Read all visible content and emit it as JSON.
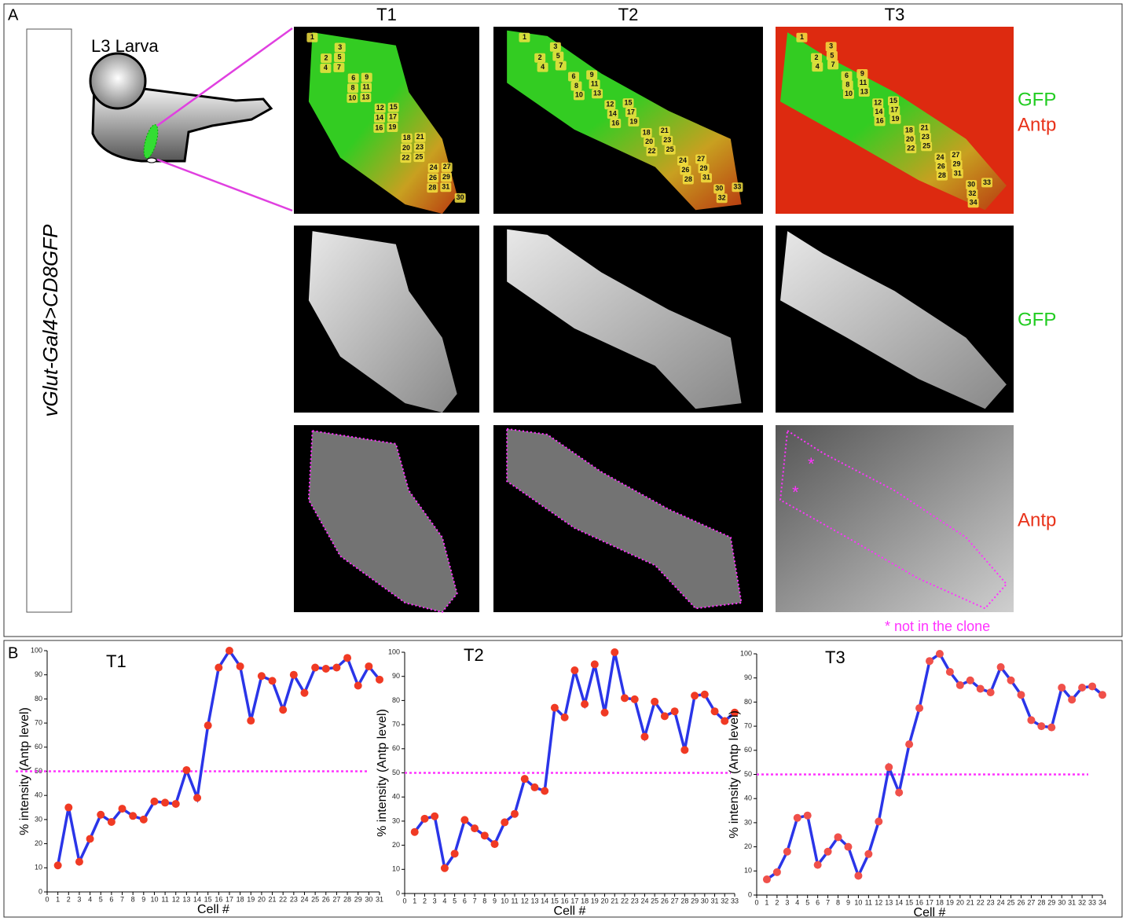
{
  "panel_a": {
    "label": "A",
    "genotype": "vGlut-Gal4>CD8GFP",
    "larva_label": "L3 Larva",
    "columns": [
      "T1",
      "T2",
      "T3"
    ],
    "row_labels": [
      [
        "GFP",
        "Antp"
      ],
      [
        "GFP"
      ],
      [
        "Antp"
      ]
    ],
    "asterisks": [
      "*",
      "*"
    ],
    "footnote": "* not in the clone",
    "cell_labels": [
      [
        "1",
        "2",
        "3",
        "4",
        "5",
        "6",
        "7",
        "8",
        "9",
        "10",
        "11",
        "12",
        "13",
        "14",
        "15",
        "16",
        "17",
        "18",
        "19",
        "20",
        "21",
        "22",
        "23",
        "24",
        "25",
        "26",
        "27",
        "28",
        "29",
        "30",
        "31"
      ],
      [
        "1",
        "2",
        "3",
        "4",
        "5",
        "6",
        "7",
        "8",
        "9",
        "10",
        "11",
        "12",
        "13",
        "14",
        "15",
        "16",
        "17",
        "18",
        "19",
        "20",
        "21",
        "22",
        "23",
        "24",
        "25",
        "26",
        "27",
        "28",
        "29",
        "30",
        "31",
        "32",
        "33"
      ],
      [
        "1",
        "2",
        "3",
        "4",
        "5",
        "6",
        "7",
        "8",
        "9",
        "10",
        "11",
        "12",
        "13",
        "14",
        "15",
        "16",
        "17",
        "18",
        "19",
        "20",
        "21",
        "22",
        "23",
        "24",
        "25",
        "26",
        "27",
        "28",
        "29",
        "30",
        "31",
        "32",
        "33",
        "34"
      ]
    ]
  },
  "panel_b_label": "B",
  "chart_data": [
    {
      "type": "line",
      "title": "T1",
      "x_label": "Cell #",
      "y_label": "% intensity (Antp level)",
      "line_color": "#2a35e8",
      "marker_color": "#f03a24",
      "reference_line": 50,
      "reference_color": "#ff33ff",
      "x": [
        1,
        2,
        3,
        4,
        5,
        6,
        7,
        8,
        9,
        10,
        11,
        12,
        13,
        14,
        15,
        16,
        17,
        18,
        19,
        20,
        21,
        22,
        23,
        24,
        25,
        26,
        27,
        28,
        29,
        30,
        31
      ],
      "values": [
        11,
        35,
        12.5,
        22,
        32,
        29,
        34.5,
        31.5,
        30,
        37.5,
        37,
        36.5,
        50.5,
        39,
        69,
        93,
        100,
        93.5,
        71,
        89.5,
        87.5,
        75.5,
        90,
        82.5,
        93,
        92.5,
        93,
        97,
        85.5,
        93.5,
        88
      ],
      "xlim": [
        0,
        31
      ],
      "xticks": [
        0,
        1,
        2,
        3,
        4,
        5,
        6,
        7,
        8,
        9,
        10,
        11,
        12,
        13,
        14,
        15,
        16,
        17,
        18,
        19,
        20,
        21,
        22,
        23,
        24,
        25,
        26,
        27,
        28,
        29,
        30,
        31
      ],
      "ylim": [
        0,
        100
      ],
      "yticks": [
        0,
        10,
        20,
        30,
        40,
        50,
        60,
        70,
        80,
        90,
        100
      ]
    },
    {
      "type": "line",
      "title": "T2",
      "x_label": "Cell #",
      "y_label": "% intensity (Antp level)",
      "line_color": "#2a35e8",
      "marker_color": "#f03a24",
      "reference_line": 50,
      "reference_color": "#ff33ff",
      "x": [
        1,
        2,
        3,
        4,
        5,
        6,
        7,
        8,
        9,
        10,
        11,
        12,
        13,
        14,
        15,
        16,
        17,
        18,
        19,
        20,
        21,
        22,
        23,
        24,
        25,
        26,
        27,
        28,
        29,
        30,
        31,
        32,
        33
      ],
      "values": [
        25.5,
        31,
        32,
        10.5,
        16.5,
        30.5,
        27,
        24,
        20.5,
        29.5,
        33,
        47.5,
        44,
        42.5,
        77,
        73,
        92.5,
        78.5,
        95,
        75,
        100,
        81,
        80.5,
        65,
        79.5,
        73.5,
        75.5,
        59.5,
        82,
        82.5,
        75.5,
        71.5,
        75
      ],
      "xlim": [
        0,
        33
      ],
      "xticks": [
        0,
        1,
        2,
        3,
        4,
        5,
        6,
        7,
        8,
        9,
        10,
        11,
        12,
        13,
        14,
        15,
        16,
        17,
        18,
        19,
        20,
        21,
        22,
        23,
        24,
        25,
        26,
        27,
        28,
        29,
        30,
        31,
        32,
        33
      ],
      "ylim": [
        0,
        100
      ],
      "yticks": [
        0,
        10,
        20,
        30,
        40,
        50,
        60,
        70,
        80,
        90,
        100
      ]
    },
    {
      "type": "line",
      "title": "T3",
      "x_label": "Cell #",
      "y_label": "% intensity (Antp level)",
      "line_color": "#2a35e8",
      "marker_color": "#f0504a",
      "reference_line": 50,
      "reference_color": "#ff33ff",
      "x": [
        1,
        2,
        3,
        4,
        5,
        6,
        7,
        8,
        9,
        10,
        11,
        12,
        13,
        14,
        15,
        16,
        17,
        18,
        19,
        20,
        21,
        22,
        23,
        24,
        25,
        26,
        27,
        28,
        29,
        30,
        31,
        32,
        33,
        34
      ],
      "values": [
        6.5,
        9.5,
        18,
        32,
        33,
        12.5,
        18,
        24,
        20,
        8,
        17,
        30.5,
        53,
        42.5,
        62.5,
        77.5,
        97,
        100,
        92.5,
        87,
        89,
        85.5,
        84,
        94.5,
        89,
        83,
        72.5,
        70,
        69.5,
        86,
        81,
        86,
        86.5,
        83
      ],
      "xlim": [
        0,
        34
      ],
      "xticks": [
        0,
        1,
        2,
        3,
        4,
        5,
        6,
        7,
        8,
        9,
        10,
        11,
        12,
        13,
        14,
        15,
        16,
        17,
        18,
        19,
        20,
        21,
        22,
        23,
        24,
        25,
        26,
        27,
        28,
        29,
        30,
        31,
        32,
        33,
        34
      ],
      "ylim": [
        0,
        100
      ],
      "yticks": [
        0,
        10,
        20,
        30,
        40,
        50,
        60,
        70,
        80,
        90,
        100
      ]
    }
  ]
}
